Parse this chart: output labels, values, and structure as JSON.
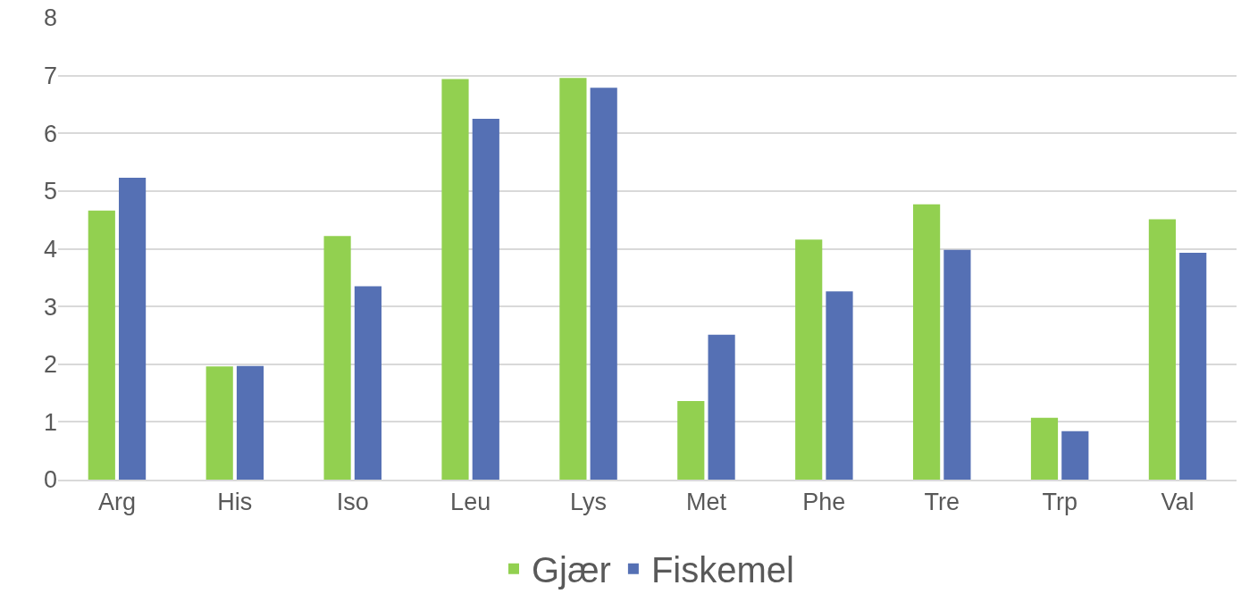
{
  "chart_data": {
    "type": "bar",
    "categories": [
      "Arg",
      "His",
      "Iso",
      "Leu",
      "Lys",
      "Met",
      "Phe",
      "Tre",
      "Trp",
      "Val"
    ],
    "series": [
      {
        "name": "Gjær",
        "color": "#92d050",
        "values": [
          4.66,
          1.96,
          4.22,
          6.94,
          6.96,
          1.36,
          4.16,
          4.77,
          1.07,
          4.51
        ]
      },
      {
        "name": "Fiskemel",
        "color": "#5570b4",
        "values": [
          5.23,
          1.97,
          3.35,
          6.25,
          6.79,
          2.51,
          3.26,
          3.98,
          0.84,
          3.93
        ]
      }
    ],
    "ylim": [
      0,
      8
    ],
    "yticks": [
      0,
      1,
      2,
      3,
      4,
      5,
      6,
      7,
      8
    ],
    "grid": "y",
    "legend": "bottom"
  }
}
